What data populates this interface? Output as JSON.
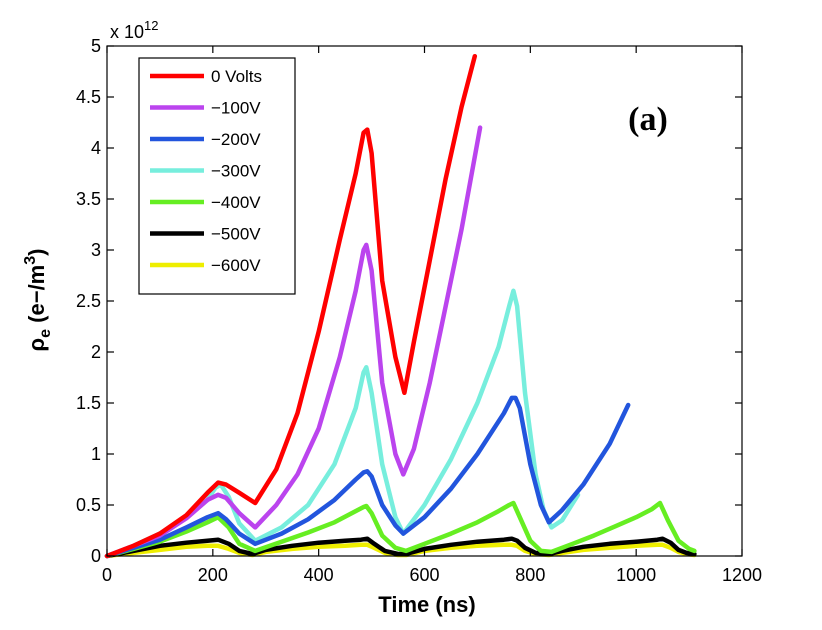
{
  "chart_data": {
    "type": "line",
    "title": "",
    "xlabel": "Time (ns)",
    "ylabel_main": "ρ",
    "ylabel_sub": "e",
    "ylabel_unit": " (e−/m",
    "ylabel_sup": "3",
    "ylabel_close": ")",
    "xlim": [
      0,
      1200
    ],
    "ylim": [
      0,
      5
    ],
    "xticks": [
      0,
      200,
      400,
      600,
      800,
      1000,
      1200
    ],
    "yticks": [
      0,
      0.5,
      1,
      1.5,
      2,
      2.5,
      3,
      3.5,
      4,
      4.5,
      5
    ],
    "xtick_labels": [
      "0",
      "200",
      "400",
      "600",
      "800",
      "1000",
      "1200"
    ],
    "ytick_labels": [
      "0",
      "0.5",
      "1",
      "1.5",
      "2",
      "2.5",
      "3",
      "3.5",
      "4",
      "4.5",
      "5"
    ],
    "y_multiplier_base": "x 10",
    "y_multiplier_exp": "12",
    "panel_label": "(a)",
    "legend_position": "top-left",
    "series": [
      {
        "name": "0 Volts",
        "color": "#ff0000",
        "x": [
          0,
          50,
          100,
          150,
          190,
          210,
          225,
          250,
          280,
          320,
          360,
          400,
          440,
          470,
          485,
          492,
          500,
          520,
          545,
          562,
          580,
          610,
          640,
          670,
          695
        ],
        "y": [
          0,
          0.1,
          0.22,
          0.4,
          0.62,
          0.72,
          0.7,
          0.62,
          0.52,
          0.85,
          1.4,
          2.2,
          3.1,
          3.75,
          4.15,
          4.18,
          3.95,
          2.7,
          1.95,
          1.6,
          2.1,
          2.9,
          3.7,
          4.4,
          4.9
        ]
      },
      {
        "name": "−100V",
        "color": "#bb44ee",
        "x": [
          0,
          50,
          100,
          150,
          190,
          210,
          225,
          250,
          280,
          320,
          360,
          400,
          440,
          470,
          485,
          490,
          500,
          520,
          545,
          560,
          580,
          610,
          640,
          670,
          705
        ],
        "y": [
          0,
          0.1,
          0.2,
          0.37,
          0.55,
          0.6,
          0.57,
          0.42,
          0.28,
          0.5,
          0.8,
          1.25,
          1.95,
          2.6,
          3.0,
          3.05,
          2.8,
          1.7,
          1.0,
          0.8,
          1.05,
          1.7,
          2.45,
          3.2,
          4.2
        ]
      },
      {
        "name": "−200V",
        "color": "#2255dd",
        "x": [
          0,
          50,
          100,
          150,
          190,
          210,
          225,
          250,
          280,
          330,
          380,
          430,
          470,
          485,
          492,
          500,
          520,
          545,
          560,
          600,
          650,
          700,
          750,
          765,
          772,
          780,
          800,
          820,
          835,
          860,
          900,
          950,
          985
        ],
        "y": [
          0,
          0.08,
          0.16,
          0.28,
          0.38,
          0.42,
          0.36,
          0.22,
          0.12,
          0.22,
          0.36,
          0.55,
          0.75,
          0.82,
          0.83,
          0.78,
          0.5,
          0.3,
          0.22,
          0.38,
          0.66,
          1.0,
          1.4,
          1.55,
          1.55,
          1.45,
          0.9,
          0.5,
          0.33,
          0.45,
          0.7,
          1.1,
          1.48
        ]
      },
      {
        "name": "−300V",
        "color": "#77eedd",
        "x": [
          0,
          50,
          100,
          150,
          190,
          205,
          215,
          230,
          250,
          280,
          330,
          380,
          430,
          470,
          485,
          490,
          500,
          520,
          545,
          560,
          600,
          650,
          700,
          740,
          760,
          768,
          775,
          790,
          810,
          825,
          840,
          860,
          890
        ],
        "y": [
          0,
          0.1,
          0.22,
          0.38,
          0.55,
          0.67,
          0.7,
          0.58,
          0.32,
          0.15,
          0.28,
          0.5,
          0.9,
          1.45,
          1.8,
          1.85,
          1.6,
          0.9,
          0.38,
          0.22,
          0.5,
          0.95,
          1.5,
          2.05,
          2.45,
          2.6,
          2.45,
          1.6,
          0.8,
          0.45,
          0.28,
          0.35,
          0.6
        ]
      },
      {
        "name": "−400V",
        "color": "#66ee22",
        "x": [
          0,
          50,
          100,
          150,
          190,
          210,
          230,
          250,
          280,
          330,
          380,
          430,
          470,
          485,
          490,
          500,
          520,
          545,
          565,
          600,
          650,
          700,
          740,
          760,
          768,
          780,
          800,
          820,
          840,
          880,
          920,
          960,
          1000,
          1030,
          1045,
          1060,
          1080,
          1100,
          1110
        ],
        "y": [
          0,
          0.07,
          0.14,
          0.24,
          0.33,
          0.38,
          0.28,
          0.12,
          0.05,
          0.14,
          0.23,
          0.33,
          0.44,
          0.48,
          0.49,
          0.42,
          0.2,
          0.08,
          0.05,
          0.12,
          0.22,
          0.33,
          0.44,
          0.5,
          0.52,
          0.38,
          0.15,
          0.05,
          0.04,
          0.12,
          0.2,
          0.29,
          0.38,
          0.46,
          0.52,
          0.35,
          0.15,
          0.07,
          0.05
        ]
      },
      {
        "name": "−500V",
        "color": "#000000",
        "x": [
          0,
          50,
          100,
          150,
          190,
          210,
          230,
          250,
          275,
          300,
          350,
          400,
          450,
          480,
          492,
          505,
          525,
          550,
          565,
          600,
          650,
          700,
          750,
          765,
          775,
          790,
          810,
          835,
          860,
          900,
          950,
          1000,
          1040,
          1050,
          1065,
          1080,
          1095,
          1110
        ],
        "y": [
          0,
          0.05,
          0.1,
          0.13,
          0.15,
          0.16,
          0.12,
          0.05,
          0.02,
          0.06,
          0.1,
          0.13,
          0.15,
          0.16,
          0.17,
          0.12,
          0.05,
          0.02,
          0.02,
          0.07,
          0.11,
          0.14,
          0.16,
          0.17,
          0.15,
          0.08,
          0.03,
          0.02,
          0.05,
          0.09,
          0.12,
          0.14,
          0.16,
          0.17,
          0.13,
          0.06,
          0.03,
          0.02
        ]
      },
      {
        "name": "−600V",
        "color": "#eeee00",
        "x": [
          0,
          50,
          100,
          150,
          190,
          210,
          230,
          250,
          275,
          300,
          350,
          400,
          450,
          480,
          492,
          505,
          525,
          550,
          565,
          600,
          650,
          700,
          750,
          765,
          775,
          790,
          810,
          835,
          860,
          900,
          950,
          1000,
          1040,
          1050,
          1065,
          1080,
          1095,
          1110
        ],
        "y": [
          0,
          0.03,
          0.06,
          0.09,
          0.1,
          0.1,
          0.07,
          0.03,
          0.01,
          0.04,
          0.07,
          0.09,
          0.1,
          0.11,
          0.11,
          0.08,
          0.03,
          0.01,
          0.01,
          0.05,
          0.08,
          0.1,
          0.11,
          0.11,
          0.1,
          0.05,
          0.02,
          0.01,
          0.03,
          0.06,
          0.08,
          0.1,
          0.11,
          0.11,
          0.08,
          0.04,
          0.02,
          0.01
        ]
      }
    ]
  }
}
